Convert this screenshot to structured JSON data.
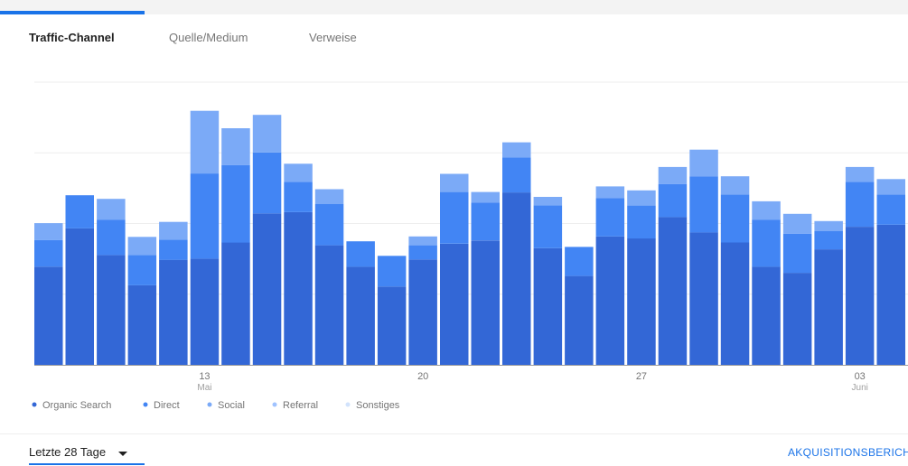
{
  "tabs": [
    {
      "label": "Traffic-Channel",
      "active": true
    },
    {
      "label": "Quelle/Medium",
      "active": false
    },
    {
      "label": "Verweise",
      "active": false
    }
  ],
  "chart_data": {
    "type": "bar",
    "stacked": true,
    "grid": true,
    "legend_position": "bottom-left",
    "ylim": [
      0,
      70
    ],
    "x_tick_labels": [
      {
        "index": 5,
        "label": "13",
        "sub": "Mai"
      },
      {
        "index": 12,
        "label": "20",
        "sub": ""
      },
      {
        "index": 19,
        "label": "27",
        "sub": ""
      },
      {
        "index": 26,
        "label": "03",
        "sub": "Juni"
      }
    ],
    "series": [
      {
        "name": "Organic Search",
        "color": "#3367d6",
        "values": [
          24.3,
          33.8,
          27.2,
          19.7,
          26.0,
          26.3,
          30.3,
          37.5,
          37.8,
          29.6,
          24.3,
          19.4,
          26.1,
          30.0,
          30.8,
          42.7,
          28.9,
          22.0,
          31.8,
          31.3,
          36.6,
          32.8,
          30.3,
          24.3,
          22.8,
          28.6,
          34.2,
          34.7
        ]
      },
      {
        "name": "Direct",
        "color": "#4285f4",
        "values": [
          6.6,
          8.2,
          8.7,
          7.5,
          5.0,
          21.1,
          19.2,
          15.1,
          7.5,
          10.2,
          6.3,
          7.6,
          3.5,
          12.8,
          9.4,
          8.7,
          10.6,
          7.2,
          9.5,
          8.2,
          8.2,
          13.9,
          11.9,
          11.6,
          9.7,
          4.5,
          11.1,
          7.5
        ]
      },
      {
        "name": "Social",
        "color": "#7baaf7",
        "values": [
          4.2,
          0,
          5.2,
          4.5,
          4.4,
          15.5,
          9.1,
          9.3,
          4.5,
          3.7,
          0,
          0,
          2.2,
          4.5,
          2.6,
          3.7,
          2.1,
          0,
          2.9,
          3.7,
          4.2,
          6.6,
          4.5,
          4.6,
          4.9,
          2.5,
          3.7,
          3.8
        ]
      },
      {
        "name": "Referral",
        "color": "#a0c3ff",
        "values": [
          0,
          0,
          0,
          0,
          0,
          0,
          0,
          0,
          0,
          0,
          0,
          0,
          0,
          0,
          0,
          0,
          0,
          0,
          0,
          0,
          0,
          0,
          0,
          0,
          0,
          0,
          0,
          0
        ]
      },
      {
        "name": "Sonstiges",
        "color": "#d2e3fc",
        "values": [
          0,
          0,
          0,
          0,
          0,
          0,
          0,
          0,
          0,
          0,
          0,
          0,
          0,
          0,
          0,
          0,
          0,
          0,
          0,
          0,
          0,
          0,
          0,
          0,
          0,
          0,
          0,
          0
        ]
      }
    ]
  },
  "legend": [
    {
      "label": "Organic Search",
      "color": "#3367d6"
    },
    {
      "label": "Direct",
      "color": "#4285f4"
    },
    {
      "label": "Social",
      "color": "#7baaf7"
    },
    {
      "label": "Referral",
      "color": "#a0c3ff"
    },
    {
      "label": "Sonstiges",
      "color": "#d2e3fc"
    }
  ],
  "footer": {
    "range_label": "Letzte 28 Tage",
    "report_link": "AKQUISITIONSBERICHT"
  }
}
